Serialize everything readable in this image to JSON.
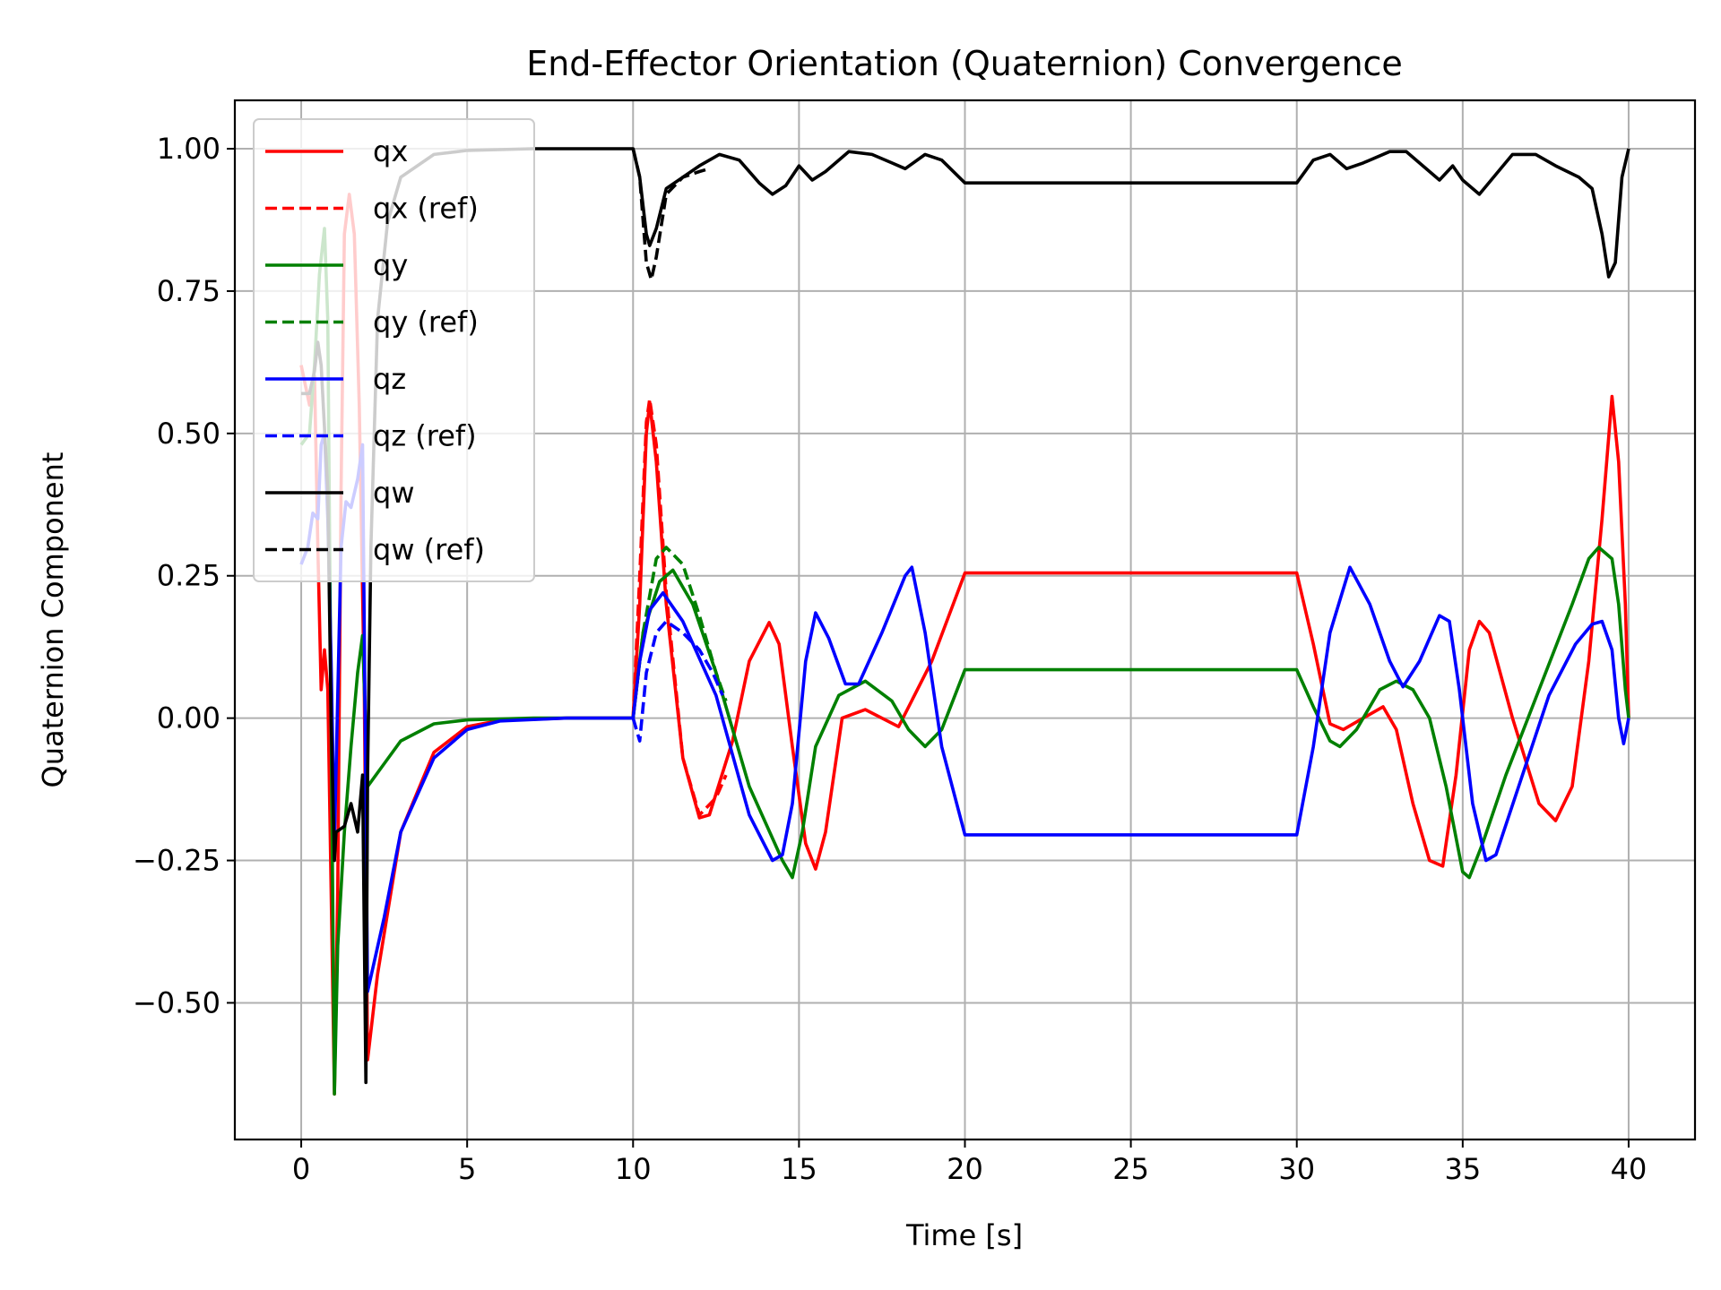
{
  "chart_data": {
    "type": "line",
    "title": "End-Effector Orientation (Quaternion) Convergence",
    "xlabel": "Time [s]",
    "ylabel": "Quaternion Component",
    "xlim": [
      -2,
      42
    ],
    "ylim": [
      -0.74,
      1.085
    ],
    "xticks": [
      0,
      5,
      10,
      15,
      20,
      25,
      30,
      35,
      40
    ],
    "xtick_labels": [
      "0",
      "5",
      "10",
      "15",
      "20",
      "25",
      "30",
      "35",
      "40"
    ],
    "yticks": [
      -0.5,
      -0.25,
      0.0,
      0.25,
      0.5,
      0.75,
      1.0
    ],
    "ytick_labels": [
      "−0.50",
      "−0.25",
      "0.00",
      "0.25",
      "0.50",
      "0.75",
      "1.00"
    ],
    "grid": true,
    "legend_position": "top-left",
    "series": [
      {
        "name": "qx",
        "color": "#ff0000",
        "dash": "solid",
        "points": [
          [
            0,
            0.62
          ],
          [
            0.25,
            0.55
          ],
          [
            0.4,
            0.6
          ],
          [
            0.5,
            0.3
          ],
          [
            0.6,
            0.05
          ],
          [
            0.7,
            0.12
          ],
          [
            0.8,
            0.05
          ],
          [
            0.9,
            -0.3
          ],
          [
            1.0,
            -0.66
          ],
          [
            1.1,
            -0.3
          ],
          [
            1.2,
            0.4
          ],
          [
            1.3,
            0.85
          ],
          [
            1.45,
            0.92
          ],
          [
            1.6,
            0.85
          ],
          [
            1.75,
            0.55
          ],
          [
            1.9,
            0.05
          ],
          [
            2.0,
            -0.6
          ],
          [
            2.3,
            -0.45
          ],
          [
            3,
            -0.2
          ],
          [
            4,
            -0.06
          ],
          [
            5,
            -0.015
          ],
          [
            6,
            -0.004
          ],
          [
            8,
            0.0
          ],
          [
            10,
            0.0
          ],
          [
            10.2,
            0.2
          ],
          [
            10.4,
            0.5
          ],
          [
            10.5,
            0.555
          ],
          [
            10.7,
            0.45
          ],
          [
            11,
            0.2
          ],
          [
            11.5,
            -0.07
          ],
          [
            12,
            -0.175
          ],
          [
            12.3,
            -0.17
          ],
          [
            13,
            -0.04
          ],
          [
            13.5,
            0.1
          ],
          [
            14.1,
            0.168
          ],
          [
            14.4,
            0.13
          ],
          [
            14.8,
            -0.05
          ],
          [
            15.2,
            -0.22
          ],
          [
            15.5,
            -0.265
          ],
          [
            15.8,
            -0.2
          ],
          [
            16.3,
            0.0
          ],
          [
            17,
            0.015
          ],
          [
            18,
            -0.015
          ],
          [
            19,
            0.1
          ],
          [
            20,
            0.255
          ],
          [
            30,
            0.255
          ],
          [
            30.5,
            0.13
          ],
          [
            31,
            -0.01
          ],
          [
            31.4,
            -0.02
          ],
          [
            32,
            0.0
          ],
          [
            32.6,
            0.02
          ],
          [
            33,
            -0.02
          ],
          [
            33.5,
            -0.15
          ],
          [
            34,
            -0.25
          ],
          [
            34.4,
            -0.26
          ],
          [
            34.8,
            -0.1
          ],
          [
            35.2,
            0.12
          ],
          [
            35.5,
            0.17
          ],
          [
            35.8,
            0.15
          ],
          [
            36.5,
            0.0
          ],
          [
            37.3,
            -0.15
          ],
          [
            37.8,
            -0.18
          ],
          [
            38.3,
            -0.12
          ],
          [
            38.8,
            0.1
          ],
          [
            39.2,
            0.35
          ],
          [
            39.5,
            0.565
          ],
          [
            39.7,
            0.45
          ],
          [
            39.9,
            0.2
          ],
          [
            40,
            0.0
          ]
        ]
      },
      {
        "name": "qx (ref)",
        "color": "#ff0000",
        "dash": "dashed",
        "points": [
          [
            10,
            0.0
          ],
          [
            10.2,
            0.25
          ],
          [
            10.4,
            0.52
          ],
          [
            10.5,
            0.56
          ],
          [
            10.7,
            0.48
          ],
          [
            11,
            0.22
          ],
          [
            11.5,
            -0.07
          ],
          [
            12,
            -0.17
          ],
          [
            12.5,
            -0.14
          ],
          [
            12.8,
            -0.1
          ]
        ]
      },
      {
        "name": "qy",
        "color": "#008000",
        "dash": "solid",
        "points": [
          [
            0,
            0.48
          ],
          [
            0.25,
            0.5
          ],
          [
            0.4,
            0.62
          ],
          [
            0.55,
            0.78
          ],
          [
            0.7,
            0.86
          ],
          [
            0.8,
            0.7
          ],
          [
            0.9,
            0.0
          ],
          [
            1.0,
            -0.66
          ],
          [
            1.1,
            -0.4
          ],
          [
            1.3,
            -0.2
          ],
          [
            1.5,
            -0.05
          ],
          [
            1.7,
            0.08
          ],
          [
            1.85,
            0.145
          ],
          [
            2.0,
            -0.12
          ],
          [
            2.5,
            -0.08
          ],
          [
            3,
            -0.04
          ],
          [
            4,
            -0.01
          ],
          [
            5,
            -0.003
          ],
          [
            7,
            0.0
          ],
          [
            10,
            0.0
          ],
          [
            10.3,
            0.15
          ],
          [
            10.8,
            0.24
          ],
          [
            11.2,
            0.26
          ],
          [
            11.8,
            0.2
          ],
          [
            12.5,
            0.08
          ],
          [
            13.5,
            -0.12
          ],
          [
            14.5,
            -0.25
          ],
          [
            14.8,
            -0.28
          ],
          [
            15.1,
            -0.2
          ],
          [
            15.5,
            -0.05
          ],
          [
            16.2,
            0.04
          ],
          [
            17,
            0.065
          ],
          [
            17.8,
            0.03
          ],
          [
            18.3,
            -0.02
          ],
          [
            18.8,
            -0.05
          ],
          [
            19.3,
            -0.02
          ],
          [
            20,
            0.085
          ],
          [
            30,
            0.085
          ],
          [
            30.5,
            0.02
          ],
          [
            31,
            -0.04
          ],
          [
            31.3,
            -0.05
          ],
          [
            31.8,
            -0.02
          ],
          [
            32.5,
            0.05
          ],
          [
            33,
            0.065
          ],
          [
            33.5,
            0.05
          ],
          [
            34,
            0.0
          ],
          [
            34.5,
            -0.12
          ],
          [
            35,
            -0.27
          ],
          [
            35.2,
            -0.28
          ],
          [
            35.6,
            -0.22
          ],
          [
            36.3,
            -0.1
          ],
          [
            37.3,
            0.05
          ],
          [
            38.3,
            0.2
          ],
          [
            38.8,
            0.28
          ],
          [
            39.1,
            0.3
          ],
          [
            39.5,
            0.28
          ],
          [
            39.7,
            0.2
          ],
          [
            39.9,
            0.05
          ],
          [
            40,
            0.0
          ]
        ]
      },
      {
        "name": "qy (ref)",
        "color": "#008000",
        "dash": "dashed",
        "points": [
          [
            10,
            0.0
          ],
          [
            10.3,
            0.15
          ],
          [
            10.7,
            0.28
          ],
          [
            11,
            0.3
          ],
          [
            11.5,
            0.27
          ],
          [
            12,
            0.18
          ],
          [
            12.5,
            0.08
          ],
          [
            12.8,
            0.03
          ]
        ]
      },
      {
        "name": "qz",
        "color": "#0000ff",
        "dash": "solid",
        "points": [
          [
            0,
            0.27
          ],
          [
            0.2,
            0.3
          ],
          [
            0.35,
            0.36
          ],
          [
            0.5,
            0.35
          ],
          [
            0.6,
            0.48
          ],
          [
            0.7,
            0.5
          ],
          [
            0.8,
            0.35
          ],
          [
            0.9,
            0.1
          ],
          [
            1.0,
            -0.22
          ],
          [
            1.2,
            0.3
          ],
          [
            1.35,
            0.38
          ],
          [
            1.5,
            0.37
          ],
          [
            1.7,
            0.42
          ],
          [
            1.85,
            0.48
          ],
          [
            2.0,
            -0.48
          ],
          [
            2.5,
            -0.35
          ],
          [
            3,
            -0.2
          ],
          [
            4,
            -0.07
          ],
          [
            5,
            -0.02
          ],
          [
            6,
            -0.005
          ],
          [
            8,
            0.0
          ],
          [
            10,
            0.0
          ],
          [
            10.2,
            0.1
          ],
          [
            10.5,
            0.19
          ],
          [
            10.9,
            0.22
          ],
          [
            11.5,
            0.17
          ],
          [
            12.5,
            0.04
          ],
          [
            13.5,
            -0.17
          ],
          [
            14.2,
            -0.25
          ],
          [
            14.5,
            -0.24
          ],
          [
            14.8,
            -0.15
          ],
          [
            15.2,
            0.1
          ],
          [
            15.5,
            0.185
          ],
          [
            15.9,
            0.14
          ],
          [
            16.4,
            0.06
          ],
          [
            16.8,
            0.06
          ],
          [
            17.5,
            0.15
          ],
          [
            18.2,
            0.25
          ],
          [
            18.4,
            0.265
          ],
          [
            18.8,
            0.15
          ],
          [
            19.3,
            -0.05
          ],
          [
            20,
            -0.205
          ],
          [
            30,
            -0.205
          ],
          [
            30.5,
            -0.05
          ],
          [
            31,
            0.15
          ],
          [
            31.6,
            0.265
          ],
          [
            32.2,
            0.2
          ],
          [
            32.8,
            0.1
          ],
          [
            33.2,
            0.055
          ],
          [
            33.7,
            0.1
          ],
          [
            34.3,
            0.18
          ],
          [
            34.6,
            0.17
          ],
          [
            34.9,
            0.05
          ],
          [
            35.3,
            -0.15
          ],
          [
            35.7,
            -0.25
          ],
          [
            36.0,
            -0.24
          ],
          [
            36.8,
            -0.1
          ],
          [
            37.6,
            0.04
          ],
          [
            38.4,
            0.13
          ],
          [
            38.9,
            0.165
          ],
          [
            39.2,
            0.17
          ],
          [
            39.5,
            0.12
          ],
          [
            39.7,
            0.0
          ],
          [
            39.85,
            -0.045
          ],
          [
            40,
            0.0
          ]
        ]
      },
      {
        "name": "qz (ref)",
        "color": "#0000ff",
        "dash": "dashed",
        "points": [
          [
            10,
            0.0
          ],
          [
            10.2,
            -0.04
          ],
          [
            10.4,
            0.08
          ],
          [
            10.7,
            0.15
          ],
          [
            11,
            0.17
          ],
          [
            11.5,
            0.15
          ],
          [
            12,
            0.12
          ],
          [
            12.4,
            0.08
          ],
          [
            12.7,
            0.04
          ]
        ]
      },
      {
        "name": "qw",
        "color": "#000000",
        "dash": "solid",
        "points": [
          [
            0,
            0.57
          ],
          [
            0.25,
            0.57
          ],
          [
            0.4,
            0.61
          ],
          [
            0.5,
            0.66
          ],
          [
            0.6,
            0.62
          ],
          [
            0.8,
            0.4
          ],
          [
            0.9,
            0.0
          ],
          [
            1.0,
            -0.25
          ],
          [
            1.05,
            -0.2
          ],
          [
            1.3,
            -0.19
          ],
          [
            1.5,
            -0.15
          ],
          [
            1.7,
            -0.2
          ],
          [
            1.85,
            -0.1
          ],
          [
            1.95,
            -0.64
          ],
          [
            2.0,
            -0.1
          ],
          [
            2.1,
            0.3
          ],
          [
            2.3,
            0.7
          ],
          [
            2.6,
            0.87
          ],
          [
            3,
            0.95
          ],
          [
            4,
            0.99
          ],
          [
            5,
            0.997
          ],
          [
            7,
            1.0
          ],
          [
            10,
            1.0
          ],
          [
            10.2,
            0.95
          ],
          [
            10.4,
            0.85
          ],
          [
            10.5,
            0.83
          ],
          [
            10.7,
            0.86
          ],
          [
            11,
            0.93
          ],
          [
            11.5,
            0.95
          ],
          [
            12,
            0.97
          ],
          [
            12.6,
            0.99
          ],
          [
            13.2,
            0.98
          ],
          [
            13.8,
            0.94
          ],
          [
            14.2,
            0.92
          ],
          [
            14.6,
            0.935
          ],
          [
            15,
            0.97
          ],
          [
            15.4,
            0.945
          ],
          [
            15.8,
            0.96
          ],
          [
            16.5,
            0.995
          ],
          [
            17.2,
            0.99
          ],
          [
            17.8,
            0.975
          ],
          [
            18.2,
            0.965
          ],
          [
            18.8,
            0.99
          ],
          [
            19.3,
            0.98
          ],
          [
            20,
            0.94
          ],
          [
            30,
            0.94
          ],
          [
            30.5,
            0.98
          ],
          [
            31,
            0.99
          ],
          [
            31.5,
            0.965
          ],
          [
            32,
            0.975
          ],
          [
            32.8,
            0.995
          ],
          [
            33.3,
            0.995
          ],
          [
            33.8,
            0.97
          ],
          [
            34.3,
            0.945
          ],
          [
            34.7,
            0.97
          ],
          [
            35,
            0.945
          ],
          [
            35.5,
            0.92
          ],
          [
            36,
            0.955
          ],
          [
            36.5,
            0.99
          ],
          [
            37.2,
            0.99
          ],
          [
            37.8,
            0.97
          ],
          [
            38.5,
            0.95
          ],
          [
            38.9,
            0.93
          ],
          [
            39.2,
            0.85
          ],
          [
            39.4,
            0.775
          ],
          [
            39.6,
            0.8
          ],
          [
            39.8,
            0.95
          ],
          [
            40,
            1.0
          ]
        ]
      },
      {
        "name": "qw (ref)",
        "color": "#000000",
        "dash": "dashed",
        "points": [
          [
            10,
            1.0
          ],
          [
            10.2,
            0.95
          ],
          [
            10.4,
            0.8
          ],
          [
            10.55,
            0.77
          ],
          [
            10.7,
            0.81
          ],
          [
            11,
            0.92
          ],
          [
            11.5,
            0.95
          ],
          [
            12,
            0.96
          ],
          [
            12.3,
            0.965
          ]
        ]
      }
    ]
  }
}
